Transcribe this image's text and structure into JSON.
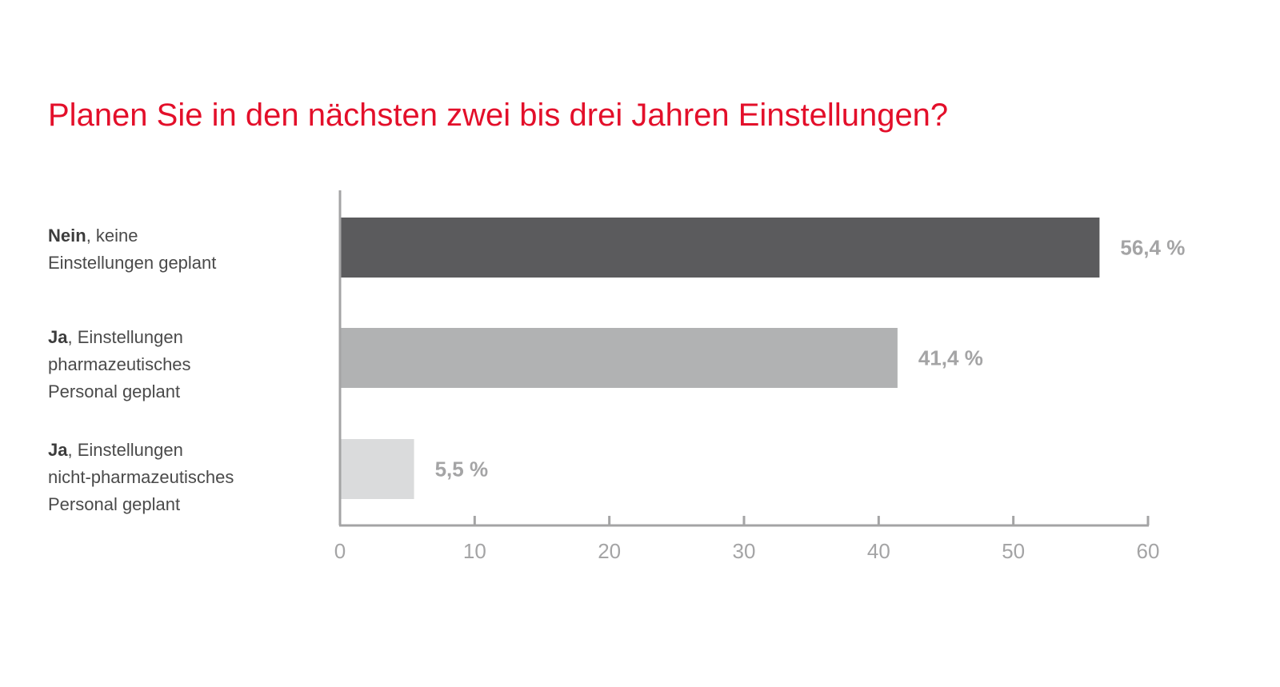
{
  "colors": {
    "title": "#e30f2a",
    "axis": "#a4a4a5",
    "value_label": "#a4a4a5",
    "bar_dark": "#5b5b5d",
    "bar_mid": "#b1b2b3",
    "bar_light": "#dadbdc"
  },
  "chart_data": {
    "type": "bar",
    "orientation": "horizontal",
    "title": "Planen Sie in den nächsten zwei bis drei Jahren Einstellungen?",
    "categories": [
      {
        "bold": "Nein",
        "rest_line1": ", keine",
        "rest_lines": [
          "Einstellungen geplant"
        ]
      },
      {
        "bold": "Ja",
        "rest_line1": ", Einstellungen",
        "rest_lines": [
          "pharmazeutisches",
          "Personal geplant"
        ]
      },
      {
        "bold": "Ja",
        "rest_line1": ", Einstellungen",
        "rest_lines": [
          "nicht-pharmazeutisches",
          "Personal geplant"
        ]
      }
    ],
    "values": [
      56.4,
      41.4,
      5.5
    ],
    "value_labels": [
      "56,4 %",
      "41,4 %",
      "5,5 %"
    ],
    "bar_colors": [
      "#5b5b5d",
      "#b1b2b3",
      "#dadbdc"
    ],
    "xlim": [
      0,
      60
    ],
    "x_ticks": [
      0,
      10,
      20,
      30,
      40,
      50,
      60
    ],
    "x_tick_labels": [
      "0",
      "10",
      "20",
      "30",
      "40",
      "50",
      "60"
    ],
    "grid": false,
    "legend": "none"
  }
}
